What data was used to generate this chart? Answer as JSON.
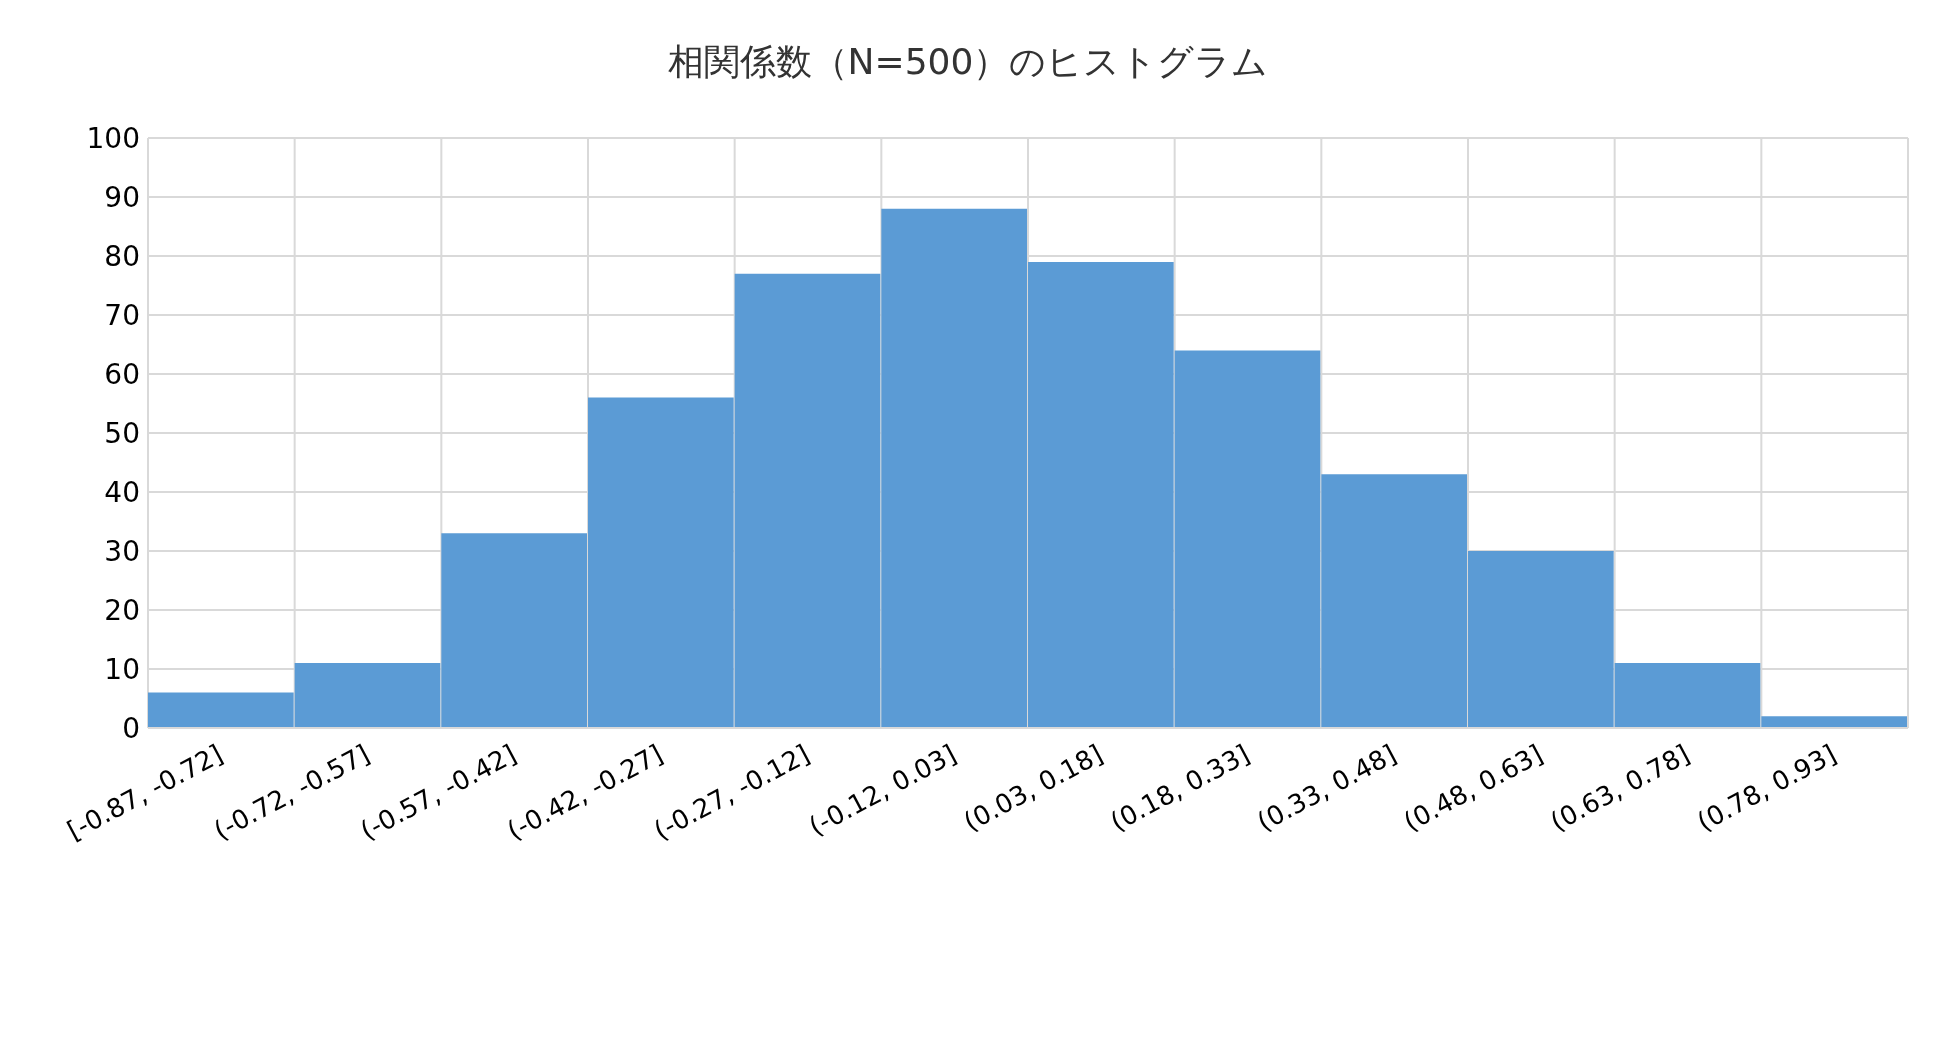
{
  "chart_data": {
    "type": "bar",
    "title": "相関係数（N=500）のヒストグラム",
    "categories": [
      "[-0.87, -0.72]",
      "(-0.72, -0.57]",
      "(-0.57, -0.42]",
      "(-0.42, -0.27]",
      "(-0.27, -0.12]",
      "(-0.12, 0.03]",
      "(0.03, 0.18]",
      "(0.18, 0.33]",
      "(0.33, 0.48]",
      "(0.48, 0.63]",
      "(0.63, 0.78]",
      "(0.78, 0.93]"
    ],
    "values": [
      6,
      11,
      33,
      56,
      77,
      88,
      79,
      64,
      43,
      30,
      11,
      2
    ],
    "color": "#5b9bd5",
    "ylim": [
      0,
      100
    ],
    "yticks": [
      0,
      10,
      20,
      30,
      40,
      50,
      60,
      70,
      80,
      90,
      100
    ],
    "grid": true
  }
}
